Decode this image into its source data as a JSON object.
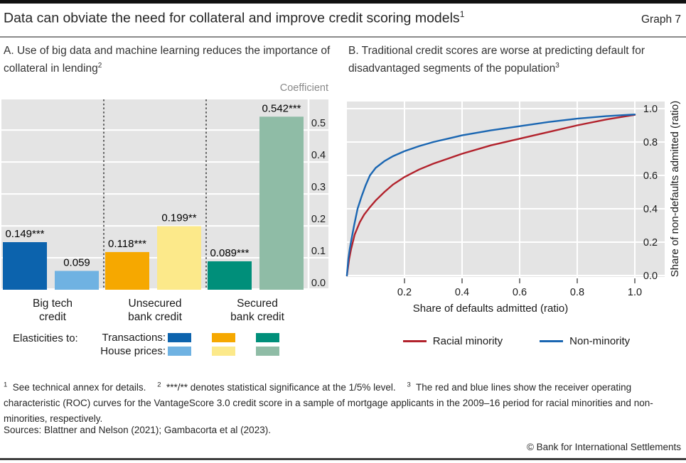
{
  "page": {
    "title": "Data can obviate the need for collateral and improve credit scoring models",
    "title_sup": "1",
    "graph_label": "Graph 7",
    "footnotes": [
      {
        "sup": "1",
        "text": "See technical annex for details."
      },
      {
        "sup": "2",
        "text": "***/** denotes statistical significance at the 1/5% level."
      },
      {
        "sup": "3",
        "text": "The red and blue lines show the receiver operating characteristic (ROC) curves for the VantageScore 3.0 credit score in a sample of mortgage applicants in the 2009–16 period for racial minorities and non-minorities, respectively."
      }
    ],
    "sources": "Sources: Blattner and Nelson (2021); Gambacorta et al (2023).",
    "copyright": "© Bank for International Settlements"
  },
  "panel_a": {
    "title": "A. Use of big data and machine learning reduces the importance of collateral in lending",
    "title_sup": "2",
    "axis_title": "Coefficient",
    "legend": {
      "prefix": "Elasticities to:",
      "rows": [
        {
          "label": "Transactions:",
          "colors": [
            "#0c63ad",
            "#f6a800",
            "#008f7a"
          ]
        },
        {
          "label": "House prices:",
          "colors": [
            "#6fb2e2",
            "#fce98a",
            "#8fbca6"
          ]
        }
      ]
    }
  },
  "panel_b": {
    "title": "B. Traditional credit scores are worse at predicting default for disadvantaged segments of the population",
    "title_sup": "3",
    "xlabel": "Share of defaults admitted (ratio)",
    "ylabel": "Share of non-defaults admitted (ratio)",
    "legend": [
      {
        "label": "Racial minority",
        "color": "#b2222c"
      },
      {
        "label": "Non-minority",
        "color": "#1a66b2"
      }
    ]
  },
  "chart_data": [
    {
      "type": "bar",
      "title": "A. Use of big data and machine learning reduces the importance of collateral in lending",
      "ylabel": "Coefficient",
      "ylim": [
        0,
        0.596
      ],
      "yticks": [
        0.0,
        0.1,
        0.2,
        0.3,
        0.4,
        0.5
      ],
      "plot_bg": "#e4e4e4",
      "grid": true,
      "groups": [
        {
          "category": "Big tech\ncredit",
          "bars": [
            {
              "series": "Transactions",
              "value": 0.149,
              "label": "0.149***",
              "color": "#0c63ad"
            },
            {
              "series": "House prices",
              "value": 0.059,
              "label": "0.059",
              "color": "#6fb2e2"
            }
          ]
        },
        {
          "category": "Unsecured\nbank credit",
          "bars": [
            {
              "series": "Transactions",
              "value": 0.118,
              "label": "0.118***",
              "color": "#f6a800"
            },
            {
              "series": "House prices",
              "value": 0.199,
              "label": "0.199**",
              "color": "#fce98a"
            }
          ]
        },
        {
          "category": "Secured\nbank credit",
          "bars": [
            {
              "series": "Transactions",
              "value": 0.089,
              "label": "0.089***",
              "color": "#008f7a"
            },
            {
              "series": "House prices",
              "value": 0.542,
              "label": "0.542***",
              "color": "#8fbca6"
            }
          ]
        }
      ]
    },
    {
      "type": "line",
      "title": "B. Traditional credit scores are worse at predicting default for disadvantaged segments of the population",
      "xlabel": "Share of defaults admitted (ratio)",
      "ylabel": "Share of non-defaults admitted (ratio)",
      "xlim": [
        0,
        1.1
      ],
      "ylim": [
        0,
        1.05
      ],
      "xticks": [
        0.2,
        0.4,
        0.6,
        0.8,
        1.0
      ],
      "yticks": [
        0.0,
        0.2,
        0.4,
        0.6,
        0.8,
        1.0
      ],
      "plot_bg": "#e4e4e4",
      "grid": true,
      "legend_position": "bottom",
      "series": [
        {
          "name": "Racial minority",
          "color": "#b2222c",
          "points": [
            [
              0,
              0
            ],
            [
              0.008,
              0.1
            ],
            [
              0.014,
              0.155
            ],
            [
              0.027,
              0.245
            ],
            [
              0.045,
              0.32
            ],
            [
              0.06,
              0.365
            ],
            [
              0.08,
              0.41
            ],
            [
              0.1,
              0.45
            ],
            [
              0.13,
              0.5
            ],
            [
              0.16,
              0.545
            ],
            [
              0.2,
              0.59
            ],
            [
              0.25,
              0.635
            ],
            [
              0.3,
              0.67
            ],
            [
              0.35,
              0.7
            ],
            [
              0.4,
              0.73
            ],
            [
              0.5,
              0.78
            ],
            [
              0.6,
              0.82
            ],
            [
              0.7,
              0.86
            ],
            [
              0.8,
              0.9
            ],
            [
              0.9,
              0.935
            ],
            [
              1.0,
              0.963
            ]
          ]
        },
        {
          "name": "Non-minority",
          "color": "#1a66b2",
          "points": [
            [
              0,
              0
            ],
            [
              0.005,
              0.1
            ],
            [
              0.01,
              0.16
            ],
            [
              0.015,
              0.21
            ],
            [
              0.025,
              0.3
            ],
            [
              0.037,
              0.4
            ],
            [
              0.05,
              0.47
            ],
            [
              0.065,
              0.54
            ],
            [
              0.08,
              0.6
            ],
            [
              0.1,
              0.645
            ],
            [
              0.13,
              0.685
            ],
            [
              0.16,
              0.715
            ],
            [
              0.2,
              0.745
            ],
            [
              0.25,
              0.775
            ],
            [
              0.3,
              0.8
            ],
            [
              0.4,
              0.84
            ],
            [
              0.5,
              0.87
            ],
            [
              0.6,
              0.895
            ],
            [
              0.7,
              0.92
            ],
            [
              0.8,
              0.94
            ],
            [
              0.9,
              0.955
            ],
            [
              1.0,
              0.965
            ]
          ]
        }
      ]
    }
  ]
}
